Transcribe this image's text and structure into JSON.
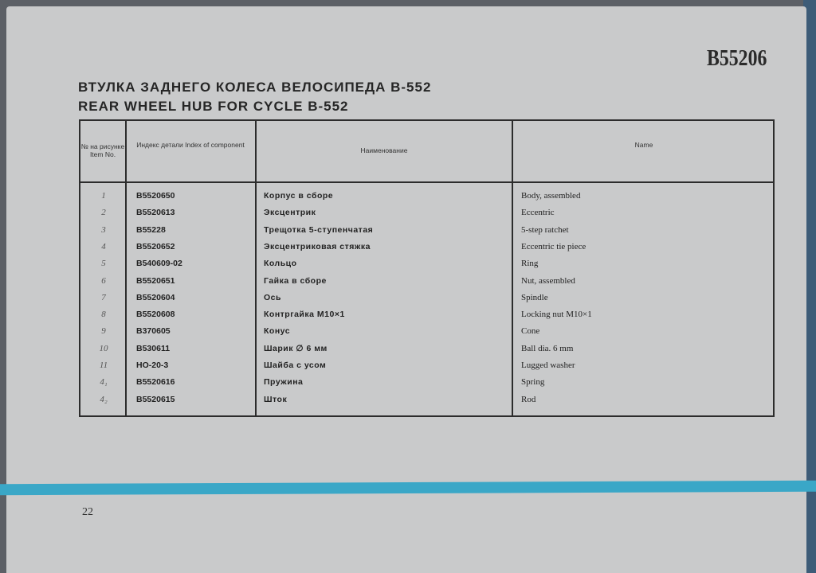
{
  "catalog_code": "B55206",
  "title_ru": "ВТУЛКА ЗАДНЕГО КОЛЕСА ВЕЛОСИПЕДА В-552",
  "title_en": "REAR WHEEL HUB FOR CYCLE B-552",
  "headers": [
    "№ на рисунке Item No.",
    "Индекс детали Index of component",
    "Наименование",
    "Name"
  ],
  "rows": [
    [
      "1",
      "B5520650",
      "Корпус в сборе",
      "Body, assembled"
    ],
    [
      "2",
      "B5520613",
      "Эксцентрик",
      "Eccentric"
    ],
    [
      "3",
      "B55228",
      "Трещотка 5-ступенчатая",
      "5-step ratchet"
    ],
    [
      "4",
      "B5520652",
      "Эксцентриковая стяжка",
      "Eccentric tie piece"
    ],
    [
      "5",
      "B540609-02",
      "Кольцо",
      "Ring"
    ],
    [
      "6",
      "B5520651",
      "Гайка в сборе",
      "Nut, assembled"
    ],
    [
      "7",
      "B5520604",
      "Ось",
      "Spindle"
    ],
    [
      "8",
      "B5520608",
      "Контргайка M10×1",
      "Locking nut M10×1"
    ],
    [
      "9",
      "B370605",
      "Конус",
      "Cone"
    ],
    [
      "10",
      "B530611",
      "Шарик ∅ 6 мм",
      "Ball dia. 6 mm"
    ],
    [
      "11",
      "HO-20-3",
      "Шайба с усом",
      "Lugged washer"
    ],
    [
      "4₁",
      "B5520616",
      "Пружина",
      "Spring"
    ],
    [
      "4₂",
      "B5520615",
      "Шток",
      "Rod"
    ]
  ],
  "page_number": "22",
  "colors": {
    "stripe": "#3aa7c7",
    "paper": "#c9cacb"
  }
}
